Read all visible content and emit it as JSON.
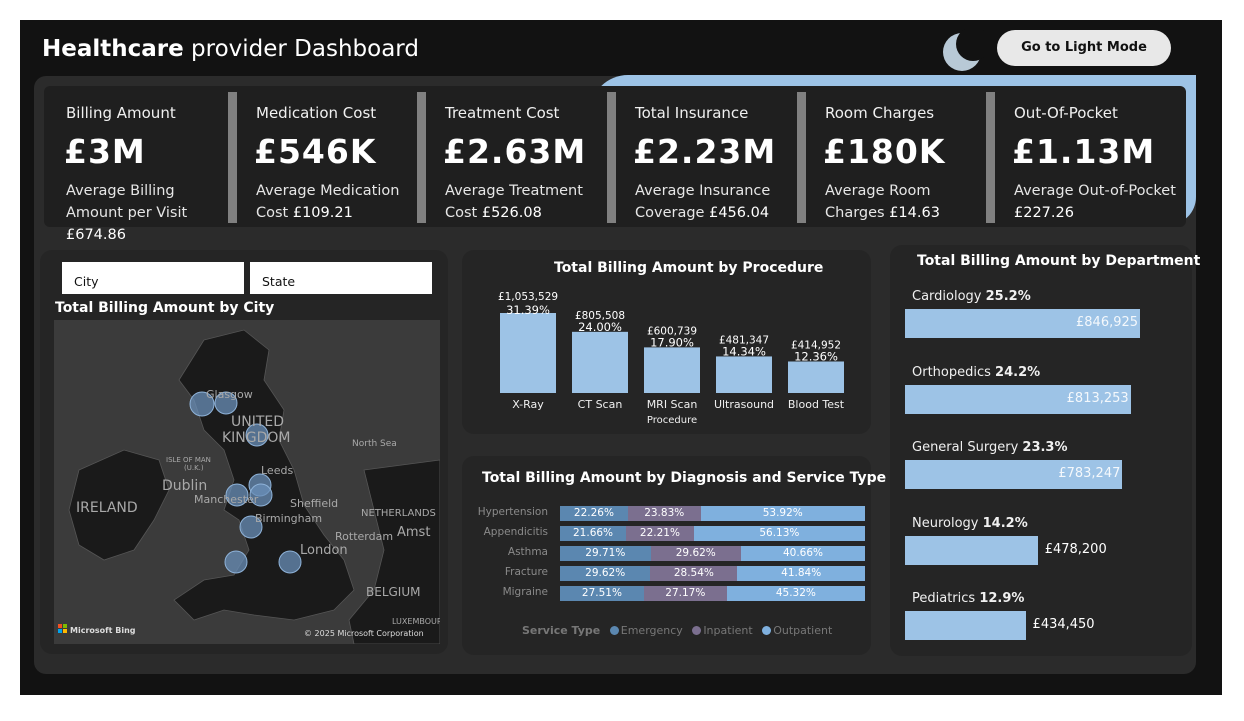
{
  "header": {
    "title_bold": "Healthcare",
    "title_rest": " provider Dashboard",
    "light_mode_label": "Go to Light Mode"
  },
  "kpis": [
    {
      "label": "Billing Amount",
      "value": "£3M",
      "sub_text": "Average Billing Amount per Visit ",
      "sub_value": "£674.86"
    },
    {
      "label": "Medication Cost",
      "value": "£546K",
      "sub_text": "Average Medication Cost ",
      "sub_value": "£109.21"
    },
    {
      "label": "Treatment Cost",
      "value": "£2.63M",
      "sub_text": "Average Treatment Cost ",
      "sub_value": "£526.08"
    },
    {
      "label": "Total Insurance",
      "value": "£2.23M",
      "sub_text": "Average Insurance Coverage ",
      "sub_value": "£456.04"
    },
    {
      "label": "Room Charges",
      "value": "£180K",
      "sub_text": "Average Room Charges ",
      "sub_value": "£14.63"
    },
    {
      "label": "Out-Of-Pocket",
      "value": "£1.13M",
      "sub_text": "Average Out-of-Pocket ",
      "sub_value": "£227.26"
    }
  ],
  "map_card": {
    "slicer_city": "City",
    "slicer_state": "State",
    "title": "Total Billing Amount by City",
    "labels": {
      "uk": "UNITED",
      "uk2": "KINGDOM",
      "ireland": "IRELAND",
      "dublin": "Dublin",
      "isle": "ISLE OF MAN",
      "isle2": "(U.K.)",
      "glasgow": "Glasgow",
      "leeds": "Leeds",
      "manchester": "Manchester",
      "sheffield": "Sheffield",
      "birmingham": "Birmingham",
      "london": "London",
      "north_sea": "North Sea",
      "netherlands": "NETHERLANDS",
      "rotterdam": "Rotterdam",
      "amst": "Amst",
      "belgium": "BELGIUM",
      "luxembourg": "LUXEMBOUR",
      "bing": "Microsoft Bing",
      "copyright": "© 2025 Microsoft Corporation"
    }
  },
  "chart_data": [
    {
      "type": "bar",
      "title": "Total Billing Amount by Procedure",
      "xlabel": "Procedure",
      "categories": [
        "X-Ray",
        "CT Scan",
        "MRI Scan",
        "Ultrasound",
        "Blood Test"
      ],
      "values": [
        1053529,
        805508,
        600739,
        481347,
        414952
      ],
      "value_labels": [
        "£1,053,529",
        "£805,508",
        "£600,739",
        "£481,347",
        "£414,952"
      ],
      "percent_labels": [
        "31.39%",
        "24.00%",
        "17.90%",
        "14.34%",
        "12.36%"
      ],
      "color": "#9dc3e6"
    },
    {
      "type": "bar",
      "subtype": "100% stacked horizontal",
      "title": "Total Billing Amount by Diagnosis and Service Type",
      "categories": [
        "Hypertension",
        "Appendicitis",
        "Asthma",
        "Fracture",
        "Migraine"
      ],
      "legend_title": "Service Type",
      "series": [
        {
          "name": "Emergency",
          "color": "#5b87b0",
          "values": [
            22.26,
            21.66,
            29.71,
            29.62,
            27.51
          ],
          "labels": [
            "22.26%",
            "21.66%",
            "29.71%",
            "29.62%",
            "27.51%"
          ]
        },
        {
          "name": "Inpatient",
          "color": "#7b6f8f",
          "values": [
            23.83,
            22.21,
            29.62,
            28.54,
            27.17
          ],
          "labels": [
            "23.83%",
            "22.21%",
            "29.62%",
            "28.54%",
            "27.17%"
          ]
        },
        {
          "name": "Outpatient",
          "color": "#7fb0de",
          "values": [
            53.92,
            56.13,
            40.66,
            41.84,
            45.32
          ],
          "labels": [
            "53.92%",
            "56.13%",
            "40.66%",
            "41.84%",
            "45.32%"
          ]
        }
      ]
    },
    {
      "type": "bar",
      "subtype": "horizontal",
      "title": "Total Billing Amount by Department",
      "categories": [
        "Cardiology",
        "Orthopedics",
        "General Surgery",
        "Neurology",
        "Pediatrics"
      ],
      "percent_labels": [
        "25.2%",
        "24.2%",
        "23.3%",
        "14.2%",
        "12.9%"
      ],
      "values": [
        846925,
        813253,
        783247,
        478200,
        434450
      ],
      "value_labels": [
        "£846,925",
        "£813,253",
        "£783,247",
        "£478,200",
        "£434,450"
      ],
      "color": "#9dc3e6"
    }
  ]
}
